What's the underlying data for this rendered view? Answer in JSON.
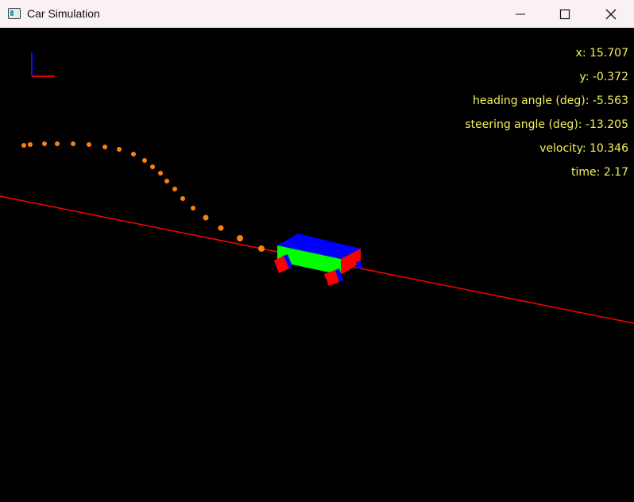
{
  "window": {
    "title": "Car Simulation"
  },
  "hud": {
    "x": "x: 15.707",
    "y": "y: -0.372",
    "heading": "heading angle (deg): -5.563",
    "steering": "steering angle (deg): -13.205",
    "velocity": "velocity: 10.346",
    "time": "time: 2.17"
  },
  "colors": {
    "background": "#000000",
    "hud_text": "#f2f25a",
    "trail": "#ff7f0e",
    "reference_line": "#ff0000",
    "car_top": "#0000ff",
    "car_side": "#00ff00",
    "car_front": "#ff0000",
    "wheel": "#ff0000"
  },
  "icons": [
    "app-icon",
    "minimize-icon",
    "maximize-icon",
    "close-icon",
    "axes-gizmo-icon"
  ]
}
